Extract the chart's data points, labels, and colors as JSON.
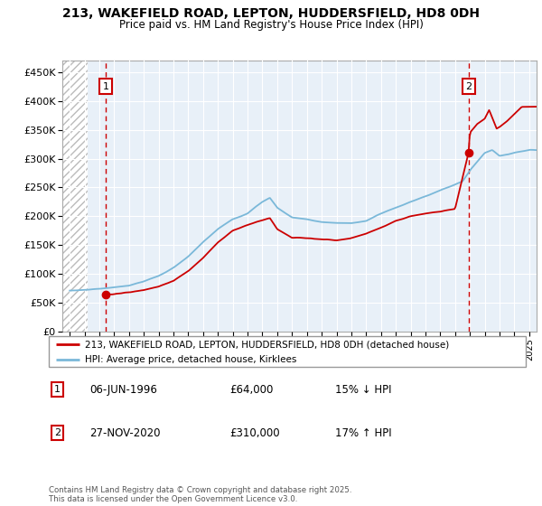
{
  "title_line1": "213, WAKEFIELD ROAD, LEPTON, HUDDERSFIELD, HD8 0DH",
  "title_line2": "Price paid vs. HM Land Registry's House Price Index (HPI)",
  "ylim": [
    0,
    470000
  ],
  "yticks": [
    0,
    50000,
    100000,
    150000,
    200000,
    250000,
    300000,
    350000,
    400000,
    450000
  ],
  "ytick_labels": [
    "£0",
    "£50K",
    "£100K",
    "£150K",
    "£200K",
    "£250K",
    "£300K",
    "£350K",
    "£400K",
    "£450K"
  ],
  "x_start_year": 1994,
  "x_end_year": 2025,
  "sale1_year": 1996.44,
  "sale1_price": 64000,
  "sale2_year": 2020.91,
  "sale2_price": 310000,
  "legend_line1": "213, WAKEFIELD ROAD, LEPTON, HUDDERSFIELD, HD8 0DH (detached house)",
  "legend_line2": "HPI: Average price, detached house, Kirklees",
  "annotation1_label": "1",
  "annotation1_date": "06-JUN-1996",
  "annotation1_price": "£64,000",
  "annotation1_hpi": "15% ↓ HPI",
  "annotation2_label": "2",
  "annotation2_date": "27-NOV-2020",
  "annotation2_price": "£310,000",
  "annotation2_hpi": "17% ↑ HPI",
  "footer": "Contains HM Land Registry data © Crown copyright and database right 2025.\nThis data is licensed under the Open Government Licence v3.0.",
  "hpi_color": "#7ab8d9",
  "sale_color": "#cc0000",
  "dashed_line_color": "#cc0000",
  "plot_bg_color": "#e8f0f8",
  "grid_color": "#ffffff",
  "annotation_box_color": "#cc0000",
  "hpi_keypoints_t": [
    1994,
    1995,
    1996,
    1997,
    1998,
    1999,
    2000,
    2001,
    2002,
    2003,
    2004,
    2005,
    2006,
    2007,
    2007.5,
    2008,
    2009,
    2010,
    2011,
    2012,
    2013,
    2014,
    2015,
    2016,
    2017,
    2018,
    2019,
    2020,
    2020.5,
    2021,
    2022,
    2022.5,
    2023,
    2024,
    2025
  ],
  "hpi_keypoints_v": [
    70000,
    72000,
    74000,
    77000,
    80000,
    87000,
    96000,
    110000,
    130000,
    155000,
    178000,
    195000,
    205000,
    225000,
    232000,
    215000,
    198000,
    195000,
    190000,
    188000,
    188000,
    192000,
    205000,
    215000,
    225000,
    235000,
    245000,
    255000,
    260000,
    280000,
    310000,
    315000,
    305000,
    310000,
    315000
  ],
  "pp_keypoints_t": [
    1996.44,
    1997,
    1998,
    1999,
    2000,
    2001,
    2002,
    2003,
    2004,
    2005,
    2006,
    2007,
    2007.5,
    2008,
    2009,
    2010,
    2011,
    2012,
    2013,
    2014,
    2015,
    2016,
    2017,
    2018,
    2019,
    2020.0,
    2020.91,
    2021,
    2021.5,
    2022,
    2022.3,
    2022.8,
    2023,
    2023.5,
    2024,
    2024.5,
    2025
  ],
  "pp_keypoints_v": [
    64000,
    65000,
    68000,
    72000,
    78000,
    88000,
    105000,
    128000,
    155000,
    175000,
    185000,
    193000,
    197000,
    178000,
    163000,
    162000,
    160000,
    158000,
    162000,
    170000,
    180000,
    192000,
    200000,
    205000,
    208000,
    213000,
    310000,
    345000,
    360000,
    370000,
    385000,
    352000,
    355000,
    365000,
    378000,
    390000,
    390000
  ]
}
